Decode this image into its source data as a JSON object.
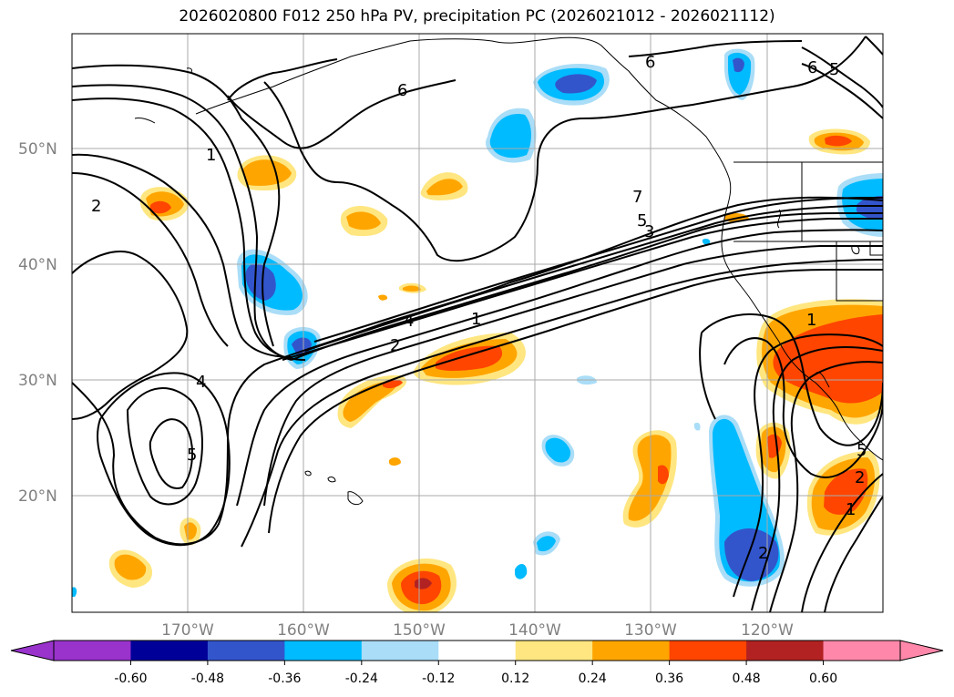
{
  "title": "2026020800 F012 250 hPa PV, precipitation PC (2026021012 - 2026021112)",
  "map": {
    "lat_labels": [
      "50°N",
      "40°N",
      "30°N",
      "20°N"
    ],
    "lon_labels": [
      "170°W",
      "160°W",
      "150°W",
      "140°W",
      "130°W",
      "120°W"
    ],
    "extent": {
      "lon_min": -180,
      "lon_max": -110,
      "lat_min": 10,
      "lat_max": 60
    },
    "pv_contour_labels": [
      "6",
      "6",
      "6",
      "5",
      "2",
      "1",
      "4",
      "5",
      "7",
      "5",
      "3",
      "4",
      "2",
      "1",
      "1",
      "2",
      "2",
      "1",
      "5"
    ]
  },
  "colorbar": {
    "levels": [
      "-0.60",
      "-0.48",
      "-0.36",
      "-0.24",
      "-0.12",
      "0.12",
      "0.24",
      "0.36",
      "0.48",
      "0.60"
    ],
    "colors": [
      "#9933cc",
      "#000099",
      "#3355cc",
      "#00bbff",
      "#aaddf7",
      "#ffffff",
      "#ffe680",
      "#ffa500",
      "#ff4500",
      "#b22222",
      "#ff88aa"
    ]
  },
  "colors": {
    "neg_strong": "#3355cc",
    "neg_mid": "#00bbff",
    "neg_light": "#aaddf7",
    "pos_light": "#ffe680",
    "pos_mid": "#ffa500",
    "pos_strong": "#ff4500",
    "pos_max": "#b22222"
  }
}
